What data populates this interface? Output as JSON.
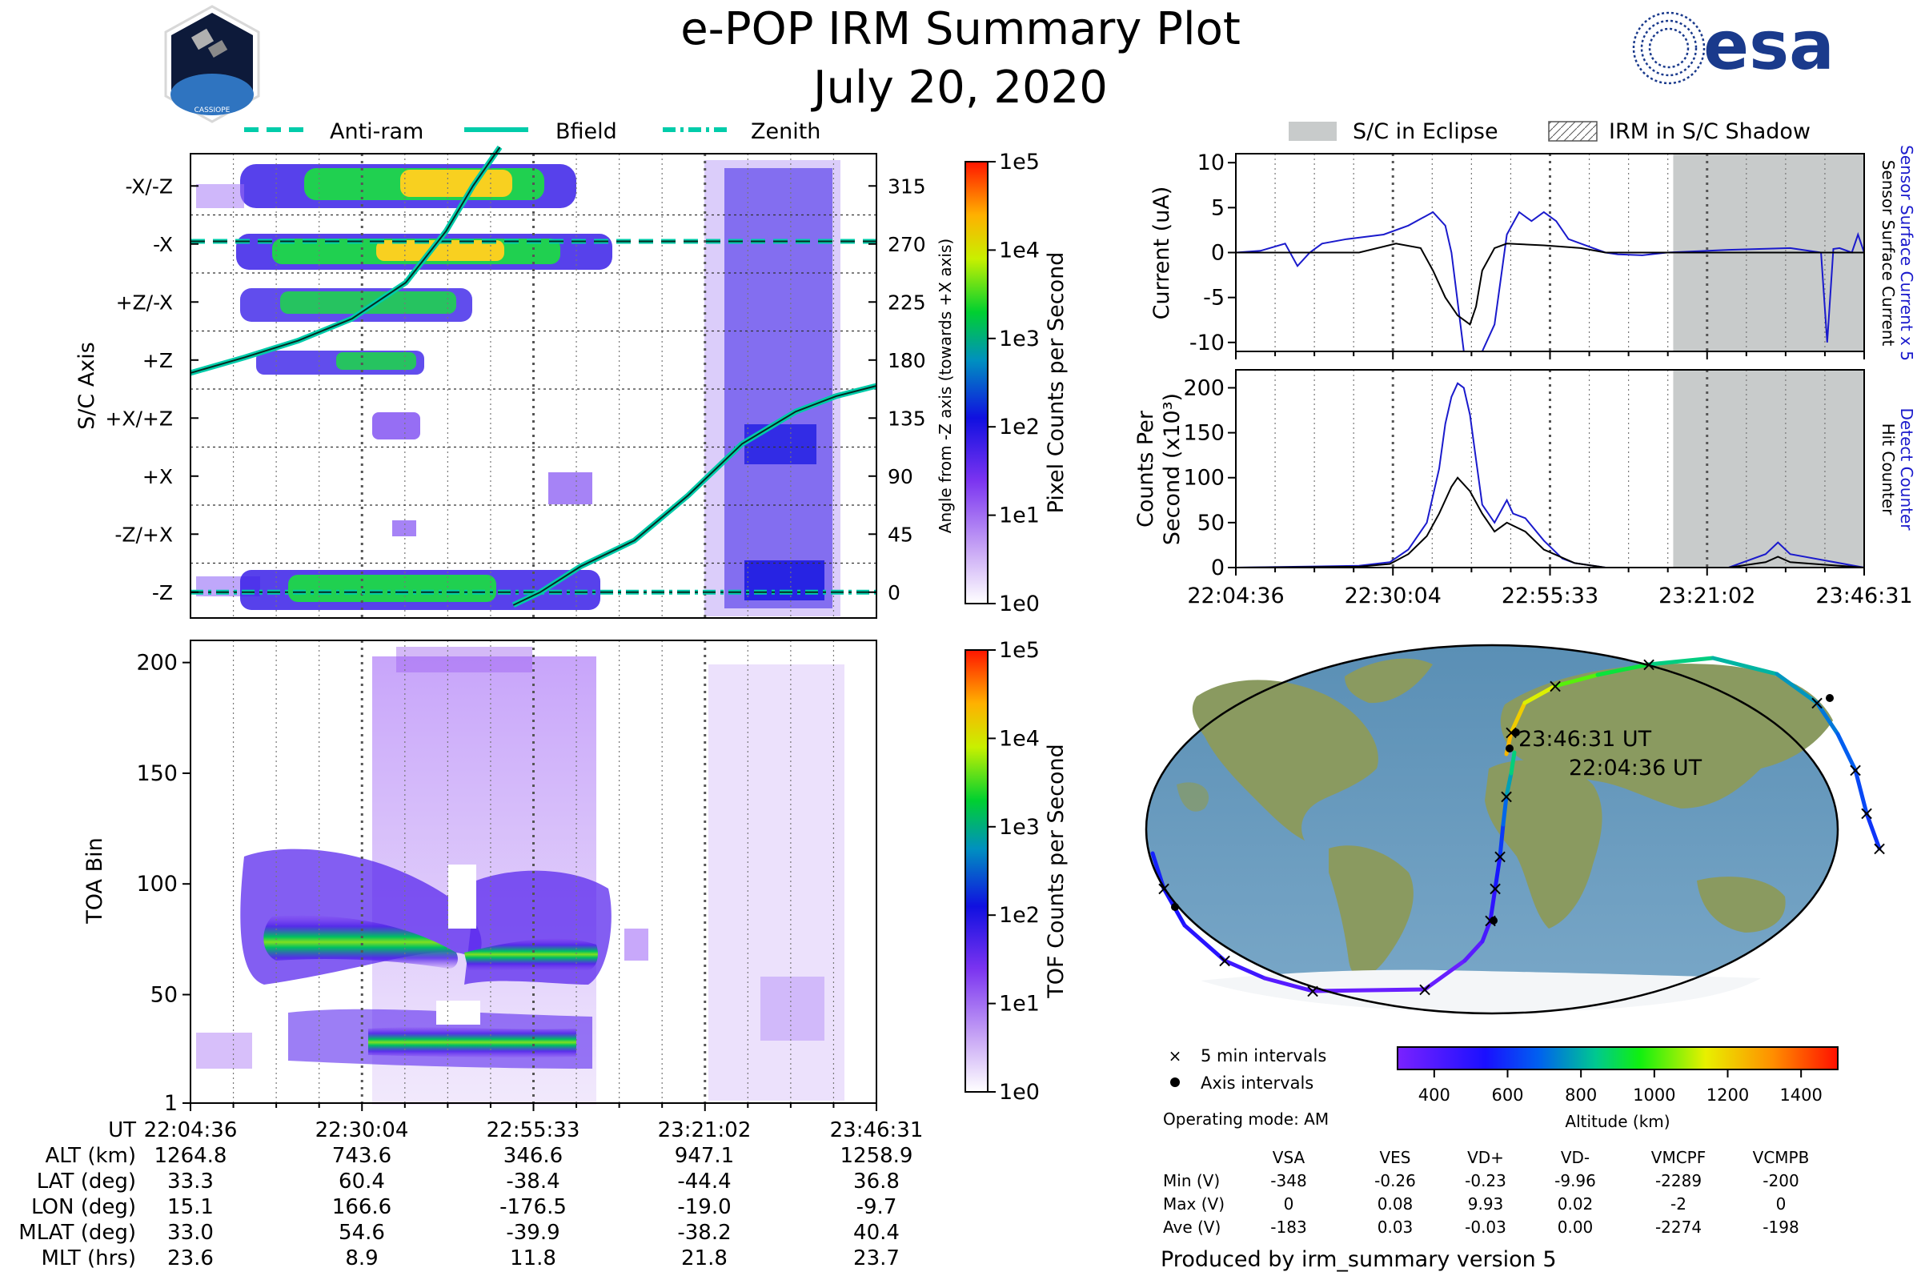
{
  "header": {
    "title": "e-POP IRM Summary Plot",
    "date": "July 20, 2020",
    "esa_logo_text": "esa",
    "mission_logo_text": "CASSIOPE"
  },
  "colors": {
    "bfield": "#00ccaa",
    "sensor_current": "#1a1acc",
    "eclipse": "#c8cbcb",
    "axis": "#000000"
  },
  "legend_top": {
    "items": [
      {
        "label": "Anti-ram",
        "style": "dashed"
      },
      {
        "label": "Bfield",
        "style": "solid"
      },
      {
        "label": "Zenith",
        "style": "dashdot"
      }
    ]
  },
  "legend_right": {
    "eclipse": "S/C in Eclipse",
    "shadow": "IRM in S/C Shadow"
  },
  "chart_data": [
    {
      "id": "pixel-spectrogram",
      "type": "heatmap",
      "ylabel": "S/C Axis",
      "y_categories": [
        "-X/-Z",
        "-X",
        "+Z/-X",
        "+Z",
        "+X/+Z",
        "+X",
        "-Z/+X",
        "-Z"
      ],
      "right_ylabel": "Angle from -Z axis (towards +X axis)",
      "right_ticks": [
        315,
        270,
        225,
        180,
        135,
        90,
        45,
        0
      ],
      "right_ylim": [
        -20,
        340
      ],
      "time_range_min": [
        0,
        102
      ],
      "overlay_lines": {
        "anti_ram_angle": 272,
        "zenith_angle": 0,
        "bfield": {
          "t": [
            0,
            8,
            16,
            24,
            32,
            38,
            42,
            46,
            48,
            52,
            58,
            66,
            74,
            82,
            90,
            96,
            102
          ],
          "angle": [
            170,
            182,
            195,
            212,
            240,
            280,
            315,
            345,
            -10,
            0,
            20,
            40,
            75,
            115,
            140,
            152,
            160
          ]
        }
      },
      "colorbar": {
        "label": "Pixel Counts per Second",
        "ticks": [
          "1e5",
          "1e4",
          "1e3",
          "1e2",
          "1e1",
          "1e0"
        ]
      }
    },
    {
      "id": "tof-spectrogram",
      "type": "heatmap",
      "ylabel": "TOA Bin",
      "yticks": [
        200,
        150,
        100,
        50,
        1
      ],
      "ylim": [
        1,
        210
      ],
      "colorbar": {
        "label": "TOF Counts per Second",
        "ticks": [
          "1e5",
          "1e4",
          "1e3",
          "1e2",
          "1e1",
          "1e0"
        ]
      },
      "bands": [
        {
          "name": "upper",
          "center_toa": 75,
          "half_width": 14
        },
        {
          "name": "lower",
          "center_toa": 25,
          "half_width": 7
        }
      ]
    },
    {
      "id": "current-plot",
      "type": "line",
      "ylabel": "Current (uA)",
      "ylim": [
        -11,
        11
      ],
      "yticks": [
        10,
        5,
        0,
        -5,
        -10
      ],
      "series": [
        {
          "name": "Sensor Surface Current x 5",
          "color": "#1a1acc",
          "t": [
            0,
            4,
            8,
            10,
            12,
            14,
            18,
            24,
            28,
            32,
            34,
            35,
            37,
            40,
            42,
            44,
            46,
            48,
            50,
            52,
            54,
            56,
            58,
            60,
            62,
            66,
            70,
            80,
            90,
            95,
            96,
            97,
            98,
            100,
            101,
            102
          ],
          "v": [
            0,
            0.2,
            1,
            -1.5,
            0,
            1,
            1.5,
            2,
            3,
            4.5,
            3,
            0,
            -11,
            -11,
            -8,
            2,
            4.5,
            3.5,
            4.5,
            3.5,
            1.5,
            1,
            0.5,
            0,
            -0.2,
            -0.3,
            0,
            0.3,
            0.5,
            0,
            -10,
            0.4,
            0.5,
            0,
            2,
            0
          ]
        },
        {
          "name": "Sensor Surface Current",
          "color": "#000000",
          "t": [
            0,
            10,
            20,
            26,
            30,
            32,
            34,
            36,
            38,
            39,
            40,
            42,
            44,
            50,
            56,
            60,
            70,
            80,
            90,
            102
          ],
          "v": [
            0,
            0,
            0,
            1,
            0.5,
            -2,
            -5,
            -7,
            -8,
            -6,
            -2,
            0.5,
            1,
            0.8,
            0.5,
            0,
            0,
            0,
            0,
            0
          ]
        }
      ],
      "right_labels": [
        "Sensor Surface Current x 5",
        "Sensor Surface Current"
      ],
      "eclipse_start_min": 71
    },
    {
      "id": "counts-plot",
      "type": "line",
      "ylabel": "Counts Per Second (x10³)",
      "ylim": [
        0,
        220
      ],
      "yticks": [
        200,
        150,
        100,
        50,
        0
      ],
      "series": [
        {
          "name": "Detect Counter",
          "color": "#1a1acc",
          "t": [
            0,
            20,
            25,
            28,
            31,
            33,
            34,
            35,
            36,
            37,
            38,
            39,
            40,
            42,
            44,
            45,
            47,
            50,
            53,
            55,
            60,
            70,
            80,
            86,
            88,
            90,
            102
          ],
          "v": [
            0,
            2,
            6,
            20,
            50,
            110,
            160,
            190,
            205,
            200,
            170,
            120,
            70,
            50,
            75,
            60,
            55,
            30,
            10,
            5,
            0,
            0,
            0,
            15,
            28,
            15,
            0
          ]
        },
        {
          "name": "Hit Counter",
          "color": "#000000",
          "t": [
            0,
            20,
            25,
            28,
            31,
            33,
            35,
            36,
            38,
            40,
            42,
            44,
            47,
            50,
            55,
            60,
            80,
            86,
            88,
            90,
            102
          ],
          "v": [
            0,
            1,
            4,
            15,
            35,
            60,
            90,
            100,
            85,
            60,
            40,
            50,
            40,
            20,
            5,
            0,
            0,
            6,
            12,
            6,
            0
          ]
        }
      ],
      "right_labels": [
        "Detect Counter",
        "Hit Counter"
      ],
      "xticks": [
        "22:04:36",
        "22:30:04",
        "22:55:33",
        "23:21:02",
        "23:46:31"
      ],
      "eclipse_start_min": 71
    }
  ],
  "time_ticks": [
    "22:04:36",
    "22:30:04",
    "22:55:33",
    "23:21:02",
    "23:46:31"
  ],
  "ephemeris": {
    "rows": [
      {
        "label": "UT",
        "values": [
          "22:04:36",
          "22:30:04",
          "22:55:33",
          "23:21:02",
          "23:46:31"
        ]
      },
      {
        "label": "ALT (km)",
        "values": [
          "1264.8",
          "743.6",
          "346.6",
          "947.1",
          "1258.9"
        ]
      },
      {
        "label": "LAT (deg)",
        "values": [
          "33.3",
          "60.4",
          "-38.4",
          "-44.4",
          "36.8"
        ]
      },
      {
        "label": "LON (deg)",
        "values": [
          "15.1",
          "166.6",
          "-176.5",
          "-19.0",
          "-9.7"
        ]
      },
      {
        "label": "MLAT (deg)",
        "values": [
          "33.0",
          "54.6",
          "-39.9",
          "-38.2",
          "40.4"
        ]
      },
      {
        "label": "MLT (hrs)",
        "values": [
          "23.6",
          "8.9",
          "11.8",
          "21.8",
          "23.7"
        ]
      }
    ]
  },
  "map": {
    "start_label": "22:04:36 UT",
    "end_label": "23:46:31 UT",
    "legend_five_min": "5 min intervals",
    "legend_axis": "Axis intervals",
    "altitude_label": "Altitude (km)",
    "altitude_ticks": [
      "400",
      "600",
      "800",
      "1000",
      "1200",
      "1400"
    ],
    "altitude_range": [
      300,
      1500
    ]
  },
  "operating_mode": "Operating mode: AM",
  "voltage_table": {
    "columns": [
      "VSA",
      "VES",
      "VD+",
      "VD-",
      "VMCPF",
      "VCMPB"
    ],
    "rows": [
      {
        "label": "Min (V)",
        "values": [
          "-348",
          "-0.26",
          "-0.23",
          "-9.96",
          "-2289",
          "-200"
        ]
      },
      {
        "label": "Max (V)",
        "values": [
          "0",
          "0.08",
          "9.93",
          "0.02",
          "-2",
          "0"
        ]
      },
      {
        "label": "Ave (V)",
        "values": [
          "-183",
          "0.03",
          "-0.03",
          "0.00",
          "-2274",
          "-198"
        ]
      }
    ]
  },
  "footer": "Produced by irm_summary version 5"
}
